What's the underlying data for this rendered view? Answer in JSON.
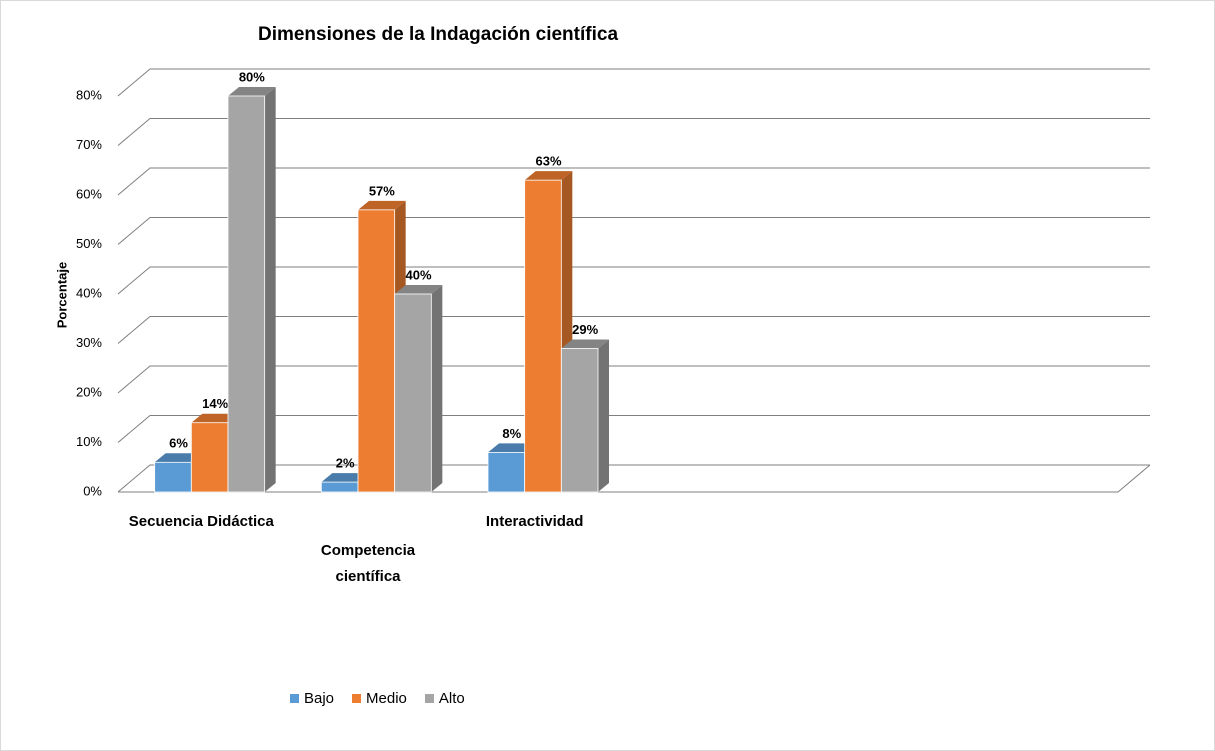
{
  "chart_data": {
    "type": "bar3d",
    "title": "Dimensiones de la Indagación científica",
    "ylabel": "Porcentaje",
    "categories": [
      "Secuencia Didáctica",
      "Competencia científica",
      "Interactividad",
      null,
      null,
      null
    ],
    "series": [
      {
        "name": "Bajo",
        "color": "#5b9bd5",
        "values": [
          6,
          2,
          8,
          null,
          null,
          null
        ],
        "value_labels": [
          "6%",
          "2%",
          "8%",
          null,
          null,
          null
        ]
      },
      {
        "name": "Medio",
        "color": "#ed7d31",
        "values": [
          14,
          57,
          63,
          null,
          null,
          null
        ],
        "value_labels": [
          "14%",
          "57%",
          "63%",
          null,
          null,
          null
        ]
      },
      {
        "name": "Alto",
        "color": "#a5a5a5",
        "values": [
          80,
          40,
          29,
          null,
          null,
          null
        ],
        "value_labels": [
          "80%",
          "40%",
          "29%",
          null,
          null,
          null
        ]
      }
    ],
    "ylim": [
      0,
      80
    ],
    "yticks": [
      {
        "value": 0,
        "label": "0%"
      },
      {
        "value": 10,
        "label": "10%"
      },
      {
        "value": 20,
        "label": "20%"
      },
      {
        "value": 30,
        "label": "30%"
      },
      {
        "value": 40,
        "label": "40%"
      },
      {
        "value": 50,
        "label": "50%"
      },
      {
        "value": 60,
        "label": "60%"
      },
      {
        "value": 70,
        "label": "70%"
      },
      {
        "value": 80,
        "label": "80%"
      }
    ],
    "grid": true,
    "legend": "bottom"
  }
}
